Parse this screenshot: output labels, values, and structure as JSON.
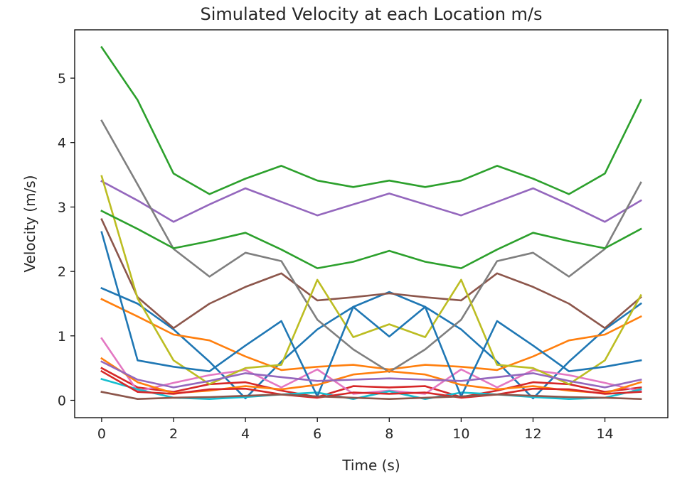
{
  "chart_data": {
    "type": "line",
    "title": "Simulated Velocity at each Location m/s",
    "xlabel": "Time (s)",
    "ylabel": "Velocity (m/s)",
    "xlim": [
      -0.75,
      15.75
    ],
    "ylim": [
      -0.27,
      5.75
    ],
    "xticks": [
      0,
      2,
      4,
      6,
      8,
      10,
      12,
      14
    ],
    "yticks": [
      0,
      1,
      2,
      3,
      4,
      5
    ],
    "grid": false,
    "legend": "none",
    "x": [
      0,
      1,
      2,
      3,
      4,
      5,
      6,
      7,
      8,
      9,
      10,
      11,
      12,
      13,
      14,
      15
    ],
    "series": [
      {
        "color": "#1f77b4",
        "values": [
          1.74,
          1.5,
          1.1,
          0.6,
          0.03,
          0.6,
          1.1,
          1.45,
          1.68,
          1.45,
          1.1,
          0.6,
          0.03,
          0.6,
          1.1,
          1.5
        ]
      },
      {
        "color": "#ff7f0e",
        "values": [
          1.57,
          1.3,
          1.02,
          0.93,
          0.68,
          0.47,
          0.52,
          0.55,
          0.48,
          0.55,
          0.52,
          0.47,
          0.68,
          0.93,
          1.02,
          1.3
        ]
      },
      {
        "color": "#2ca02c",
        "values": [
          5.48,
          4.66,
          3.52,
          3.2,
          3.44,
          3.64,
          3.41,
          3.31,
          3.41,
          3.31,
          3.41,
          3.64,
          3.44,
          3.2,
          3.52,
          4.66
        ]
      },
      {
        "color": "#d62728",
        "values": [
          0.5,
          0.2,
          0.13,
          0.25,
          0.28,
          0.15,
          0.05,
          0.22,
          0.2,
          0.22,
          0.05,
          0.15,
          0.28,
          0.25,
          0.13,
          0.2
        ]
      },
      {
        "color": "#9467bd",
        "values": [
          3.4,
          3.1,
          2.77,
          3.04,
          3.29,
          3.08,
          2.87,
          3.04,
          3.21,
          3.04,
          2.87,
          3.08,
          3.29,
          3.04,
          2.77,
          3.1
        ]
      },
      {
        "color": "#8c564b",
        "values": [
          2.81,
          1.6,
          1.12,
          1.5,
          1.76,
          1.97,
          1.55,
          1.6,
          1.66,
          1.6,
          1.55,
          1.97,
          1.76,
          1.5,
          1.12,
          1.6
        ]
      },
      {
        "color": "#e377c2",
        "values": [
          0.96,
          0.14,
          0.27,
          0.39,
          0.47,
          0.2,
          0.48,
          0.1,
          0.15,
          0.1,
          0.48,
          0.2,
          0.47,
          0.39,
          0.27,
          0.14
        ]
      },
      {
        "color": "#7f7f7f",
        "values": [
          4.34,
          3.35,
          2.35,
          1.92,
          2.29,
          2.16,
          1.25,
          0.79,
          0.44,
          0.79,
          1.25,
          2.16,
          2.29,
          1.92,
          2.35,
          3.38
        ]
      },
      {
        "color": "#bcbd22",
        "values": [
          3.48,
          1.58,
          0.62,
          0.25,
          0.5,
          0.55,
          1.87,
          0.98,
          1.18,
          0.98,
          1.87,
          0.55,
          0.5,
          0.25,
          0.62,
          1.63
        ]
      },
      {
        "color": "#17becf",
        "values": [
          0.33,
          0.17,
          0.04,
          0.02,
          0.05,
          0.09,
          0.12,
          0.02,
          0.14,
          0.02,
          0.12,
          0.09,
          0.05,
          0.02,
          0.04,
          0.17
        ]
      },
      {
        "color": "#1f77b4",
        "values": [
          2.61,
          0.62,
          0.52,
          0.45,
          0.85,
          1.23,
          0.06,
          1.45,
          0.99,
          1.45,
          0.06,
          1.23,
          0.85,
          0.45,
          0.52,
          0.62
        ]
      },
      {
        "color": "#ff7f0e",
        "values": [
          0.65,
          0.28,
          0.11,
          0.15,
          0.22,
          0.17,
          0.24,
          0.4,
          0.45,
          0.4,
          0.24,
          0.17,
          0.22,
          0.15,
          0.11,
          0.28
        ]
      },
      {
        "color": "#2ca02c",
        "values": [
          2.94,
          2.66,
          2.36,
          2.47,
          2.6,
          2.34,
          2.05,
          2.15,
          2.32,
          2.15,
          2.05,
          2.34,
          2.6,
          2.47,
          2.36,
          2.66
        ]
      },
      {
        "color": "#d62728",
        "values": [
          0.45,
          0.13,
          0.1,
          0.17,
          0.18,
          0.09,
          0.04,
          0.12,
          0.1,
          0.12,
          0.04,
          0.09,
          0.18,
          0.17,
          0.1,
          0.13
        ]
      },
      {
        "color": "#9467bd",
        "values": [
          0.6,
          0.32,
          0.2,
          0.3,
          0.42,
          0.36,
          0.3,
          0.32,
          0.34,
          0.32,
          0.3,
          0.36,
          0.42,
          0.3,
          0.2,
          0.32
        ]
      },
      {
        "color": "#8c564b",
        "values": [
          0.13,
          0.02,
          0.04,
          0.05,
          0.07,
          0.09,
          0.06,
          0.04,
          0.02,
          0.04,
          0.06,
          0.09,
          0.07,
          0.05,
          0.04,
          0.02
        ]
      }
    ]
  }
}
